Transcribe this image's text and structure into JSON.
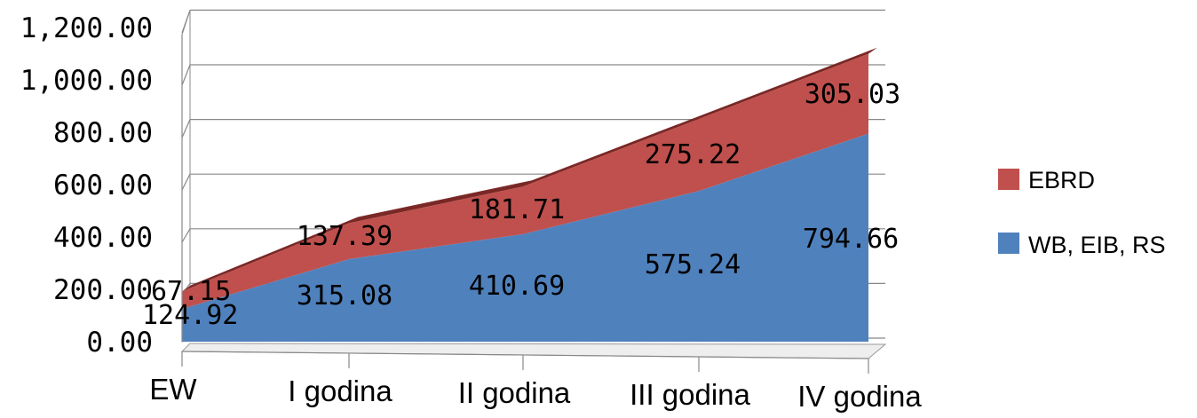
{
  "chart_data": {
    "type": "area",
    "categories": [
      "EW",
      "I godina",
      "II godina",
      "III godina",
      "IV godina"
    ],
    "series": [
      {
        "name": "WB, EIB, RS",
        "values": [
          124.92,
          315.08,
          410.69,
          575.24,
          794.66
        ],
        "color": "#4f81bd",
        "labels": [
          "124.92",
          "315.08",
          "410.69",
          "575.24",
          "794.66"
        ]
      },
      {
        "name": "EBRD",
        "values": [
          67.15,
          137.39,
          181.71,
          275.22,
          305.03
        ],
        "color": "#c0504d",
        "labels": [
          "67.15",
          "137.39",
          "181.71",
          "275.22",
          "305.03"
        ]
      }
    ],
    "stacked": true,
    "three_d": true,
    "yticks": [
      "0.00",
      "200.00",
      "400.00",
      "600.00",
      "800.00",
      "1,000.00",
      "1,200.00"
    ],
    "ylim": [
      0,
      1200
    ],
    "grid": true,
    "legend_position": "right"
  }
}
